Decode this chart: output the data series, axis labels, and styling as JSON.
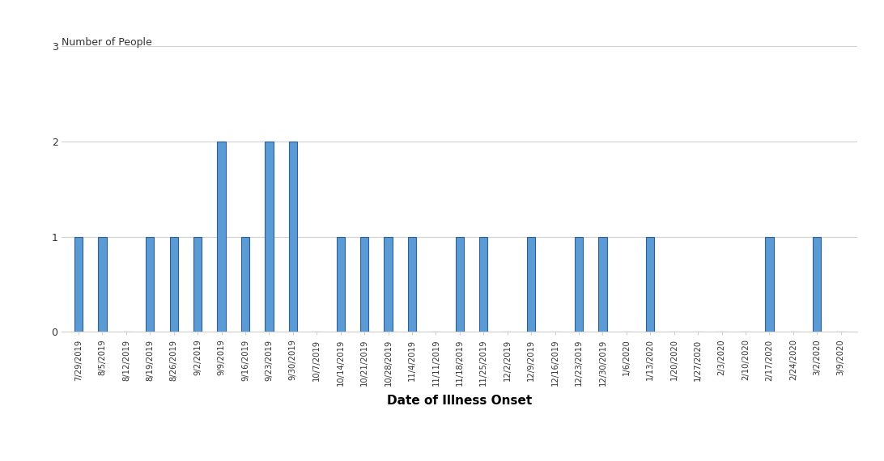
{
  "dates": [
    "7/29/2019",
    "8/5/2019",
    "8/12/2019",
    "8/19/2019",
    "8/26/2019",
    "9/2/2019",
    "9/9/2019",
    "9/16/2019",
    "9/23/2019",
    "9/30/2019",
    "10/7/2019",
    "10/14/2019",
    "10/21/2019",
    "10/28/2019",
    "11/4/2019",
    "11/11/2019",
    "11/18/2019",
    "11/25/2019",
    "12/2/2019",
    "12/9/2019",
    "12/16/2019",
    "12/23/2019",
    "12/30/2019",
    "1/6/2020",
    "1/13/2020",
    "1/20/2020",
    "1/27/2020",
    "2/3/2020",
    "2/10/2020",
    "2/17/2020",
    "2/24/2020",
    "3/2/2020",
    "3/9/2020"
  ],
  "values": [
    1,
    1,
    0,
    1,
    1,
    1,
    2,
    1,
    2,
    2,
    0,
    1,
    1,
    1,
    1,
    0,
    1,
    1,
    0,
    1,
    0,
    1,
    1,
    0,
    1,
    0,
    0,
    0,
    0,
    1,
    0,
    1,
    0
  ],
  "bar_color": "#5b9bd5",
  "bar_edge_color": "#2e5e99",
  "ylabel": "Number of People",
  "xlabel": "Date of Illness Onset",
  "ylim": [
    0,
    3
  ],
  "yticks": [
    0,
    1,
    2,
    3
  ],
  "background_color": "#ffffff",
  "grid_color": "#d0d0d0"
}
